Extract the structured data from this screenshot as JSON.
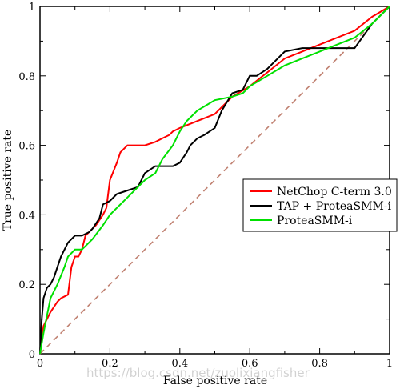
{
  "chart_data": {
    "type": "line",
    "title": "",
    "xlabel": "False positive rate",
    "ylabel": "True positive rate",
    "xlim": [
      0,
      1
    ],
    "ylim": [
      0,
      1
    ],
    "xticks": [
      "0",
      "0.2",
      "0.4",
      "0.6",
      "0.8",
      "1"
    ],
    "yticks": [
      "0",
      "0.2",
      "0.4",
      "0.6",
      "0.8",
      "1"
    ],
    "grid": false,
    "legend_position": "center-right",
    "series": [
      {
        "name": "NetChop C-term 3.0",
        "color": "#ff0000",
        "x": [
          0,
          0.01,
          0.03,
          0.05,
          0.06,
          0.08,
          0.09,
          0.1,
          0.11,
          0.12,
          0.13,
          0.15,
          0.16,
          0.18,
          0.19,
          0.2,
          0.22,
          0.23,
          0.25,
          0.27,
          0.3,
          0.33,
          0.35,
          0.37,
          0.38,
          0.4,
          0.45,
          0.5,
          0.55,
          0.6,
          0.65,
          0.7,
          0.75,
          0.8,
          0.9,
          0.95,
          1
        ],
        "y": [
          0,
          0.08,
          0.12,
          0.15,
          0.16,
          0.17,
          0.25,
          0.28,
          0.28,
          0.3,
          0.34,
          0.36,
          0.37,
          0.4,
          0.42,
          0.5,
          0.55,
          0.58,
          0.6,
          0.6,
          0.6,
          0.61,
          0.62,
          0.63,
          0.64,
          0.65,
          0.67,
          0.69,
          0.74,
          0.77,
          0.81,
          0.85,
          0.87,
          0.89,
          0.93,
          0.97,
          1
        ]
      },
      {
        "name": "TAP + ProteaSMM-i",
        "color": "#000000",
        "x": [
          0,
          0.005,
          0.01,
          0.02,
          0.03,
          0.04,
          0.05,
          0.06,
          0.07,
          0.08,
          0.1,
          0.12,
          0.14,
          0.15,
          0.17,
          0.18,
          0.2,
          0.22,
          0.25,
          0.28,
          0.3,
          0.33,
          0.35,
          0.38,
          0.4,
          0.42,
          0.43,
          0.45,
          0.47,
          0.5,
          0.52,
          0.55,
          0.58,
          0.6,
          0.62,
          0.65,
          0.68,
          0.7,
          0.75,
          0.8,
          0.85,
          0.9,
          0.95,
          1
        ],
        "y": [
          0,
          0.1,
          0.16,
          0.19,
          0.2,
          0.22,
          0.25,
          0.28,
          0.3,
          0.32,
          0.34,
          0.34,
          0.35,
          0.36,
          0.39,
          0.43,
          0.44,
          0.46,
          0.47,
          0.48,
          0.52,
          0.54,
          0.54,
          0.54,
          0.55,
          0.58,
          0.6,
          0.62,
          0.63,
          0.65,
          0.7,
          0.75,
          0.76,
          0.8,
          0.8,
          0.82,
          0.85,
          0.87,
          0.88,
          0.88,
          0.88,
          0.88,
          0.95,
          1
        ]
      },
      {
        "name": "ProteaSMM-i",
        "color": "#00e000",
        "x": [
          0,
          0.01,
          0.02,
          0.03,
          0.05,
          0.07,
          0.08,
          0.1,
          0.12,
          0.15,
          0.18,
          0.2,
          0.22,
          0.25,
          0.28,
          0.3,
          0.33,
          0.35,
          0.38,
          0.4,
          0.42,
          0.45,
          0.5,
          0.55,
          0.58,
          0.6,
          0.65,
          0.7,
          0.75,
          0.8,
          0.85,
          0.9,
          0.95,
          1
        ],
        "y": [
          0,
          0.06,
          0.11,
          0.16,
          0.2,
          0.25,
          0.28,
          0.3,
          0.3,
          0.33,
          0.37,
          0.4,
          0.42,
          0.45,
          0.48,
          0.5,
          0.52,
          0.56,
          0.6,
          0.64,
          0.67,
          0.7,
          0.73,
          0.74,
          0.75,
          0.77,
          0.8,
          0.83,
          0.85,
          0.87,
          0.89,
          0.91,
          0.95,
          1
        ]
      }
    ],
    "reference_line": {
      "x": [
        0,
        1
      ],
      "y": [
        0,
        1
      ],
      "color": "#c08070",
      "style": "dashed"
    },
    "watermark": "https://blog.csdn.net/zuolixiangfisher"
  }
}
